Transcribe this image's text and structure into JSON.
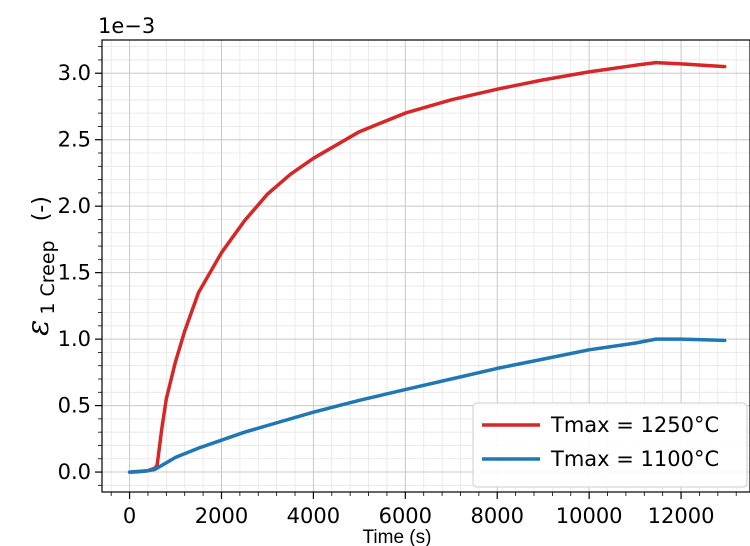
{
  "chart_data": {
    "type": "line",
    "title": "",
    "xlabel": "Time (s)",
    "ylabel_symbol": "ε",
    "ylabel_subscript": "1 Creep",
    "ylabel_unit": "(-)",
    "y_offset_text": "1e−3",
    "xlim": [
      -600,
      13500
    ],
    "ylim": [
      -0.00015,
      0.00325
    ],
    "x_ticks": [
      0,
      2000,
      4000,
      6000,
      8000,
      10000,
      12000
    ],
    "x_tick_labels": [
      "0",
      "2000",
      "4000",
      "6000",
      "8000",
      "10000",
      "12000"
    ],
    "y_ticks": [
      0.0,
      0.0005,
      0.001,
      0.0015,
      0.002,
      0.0025,
      0.003
    ],
    "y_tick_labels": [
      "0.0",
      "0.5",
      "1.0",
      "1.5",
      "2.0",
      "2.5",
      "3.0"
    ],
    "grid": true,
    "legend_position": "lower-right",
    "series": [
      {
        "name": "Tmax = 1250°C",
        "color": "#d62728",
        "x": [
          0,
          200,
          400,
          550,
          600,
          700,
          800,
          1000,
          1200,
          1500,
          2000,
          2500,
          3000,
          3500,
          4000,
          5000,
          6000,
          7000,
          8000,
          9000,
          10000,
          11000,
          11450,
          12000,
          12950
        ],
        "y": [
          0.0,
          5e-06,
          1e-05,
          3e-05,
          5e-05,
          0.00032,
          0.00055,
          0.00083,
          0.00106,
          0.00135,
          0.00165,
          0.00189,
          0.00209,
          0.00224,
          0.00236,
          0.00256,
          0.0027,
          0.0028,
          0.00288,
          0.00295,
          0.00301,
          0.00306,
          0.00308,
          0.00307,
          0.00305
        ]
      },
      {
        "name": "Tmax = 1100°C",
        "color": "#1f77b4",
        "x": [
          0,
          200,
          400,
          550,
          600,
          800,
          1000,
          1500,
          2000,
          2500,
          3000,
          4000,
          5000,
          6000,
          7000,
          8000,
          9000,
          10000,
          11000,
          11450,
          12000,
          12950
        ],
        "y": [
          0.0,
          3e-06,
          1e-05,
          2e-05,
          3e-05,
          7e-05,
          0.00011,
          0.00018,
          0.00024,
          0.0003,
          0.00035,
          0.00045,
          0.00054,
          0.00062,
          0.0007,
          0.00078,
          0.00085,
          0.00092,
          0.00097,
          0.001,
          0.001,
          0.00099
        ]
      }
    ]
  }
}
